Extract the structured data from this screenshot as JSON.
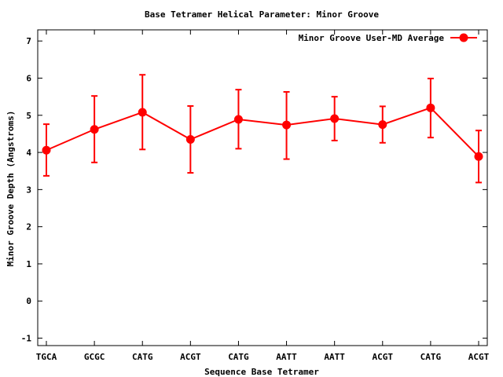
{
  "chart_data": {
    "type": "line",
    "title": "Base Tetramer Helical Parameter: Minor Groove",
    "xlabel": "Sequence Base Tetramer",
    "ylabel": "Minor Groove Depth (Angstroms)",
    "ylim": [
      -1.2,
      7.3
    ],
    "yticks": [
      -1,
      0,
      1,
      2,
      3,
      4,
      5,
      6,
      7
    ],
    "categories": [
      "TGCA",
      "GCGC",
      "CATG",
      "ACGT",
      "CATG",
      "AATT",
      "AATT",
      "ACGT",
      "CATG",
      "ACGT"
    ],
    "grid": false,
    "legend_position": "top-right",
    "series": [
      {
        "name": "Minor Groove User-MD Average",
        "color": "#ff0000",
        "marker": "circle",
        "values": [
          4.06,
          4.62,
          5.08,
          4.35,
          4.89,
          4.74,
          4.91,
          4.75,
          5.2,
          3.89
        ],
        "error_low": [
          3.37,
          3.73,
          4.08,
          3.45,
          4.1,
          3.82,
          4.32,
          4.26,
          4.4,
          3.19
        ],
        "error_high": [
          4.76,
          5.52,
          6.09,
          5.25,
          5.69,
          5.63,
          5.5,
          5.24,
          5.99,
          4.59
        ]
      }
    ]
  }
}
